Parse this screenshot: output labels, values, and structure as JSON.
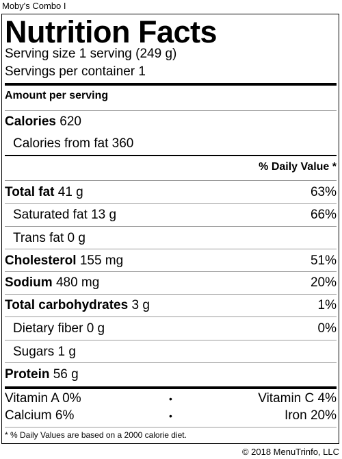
{
  "product_name": "Moby's Combo I",
  "label": {
    "title": "Nutrition Facts",
    "serving_size": "Serving size 1 serving (249 g)",
    "servings_per_container": "Servings per container 1",
    "amount_per_serving": "Amount per serving",
    "calories": {
      "label": "Calories",
      "value": "620"
    },
    "calories_from_fat": {
      "label": "Calories from fat",
      "value": "360"
    },
    "daily_value_header": "% Daily Value *",
    "nutrients": [
      {
        "label": "Total fat",
        "amount": "41 g",
        "dv": "63%"
      },
      {
        "label": "Saturated fat",
        "amount": "13 g",
        "dv": "66%"
      },
      {
        "label": "Trans fat",
        "amount": "0 g",
        "dv": ""
      },
      {
        "label": "Cholesterol",
        "amount": "155 mg",
        "dv": "51%"
      },
      {
        "label": "Sodium",
        "amount": "480 mg",
        "dv": "20%"
      },
      {
        "label": "Total carbohydrates",
        "amount": "3 g",
        "dv": "1%"
      },
      {
        "label": "Dietary fiber",
        "amount": "0 g",
        "dv": "0%"
      },
      {
        "label": "Sugars",
        "amount": "1 g",
        "dv": ""
      },
      {
        "label": "Protein",
        "amount": "56 g",
        "dv": ""
      }
    ],
    "vitamins": [
      {
        "left": "Vitamin A 0%",
        "right": "Vitamin C 4%"
      },
      {
        "left": "Calcium 6%",
        "right": "Iron 20%"
      }
    ],
    "bullet": "•",
    "footnote": "* % Daily Values are based on a 2000 calorie diet."
  },
  "copyright": "© 2018 MenuTrinfo, LLC"
}
